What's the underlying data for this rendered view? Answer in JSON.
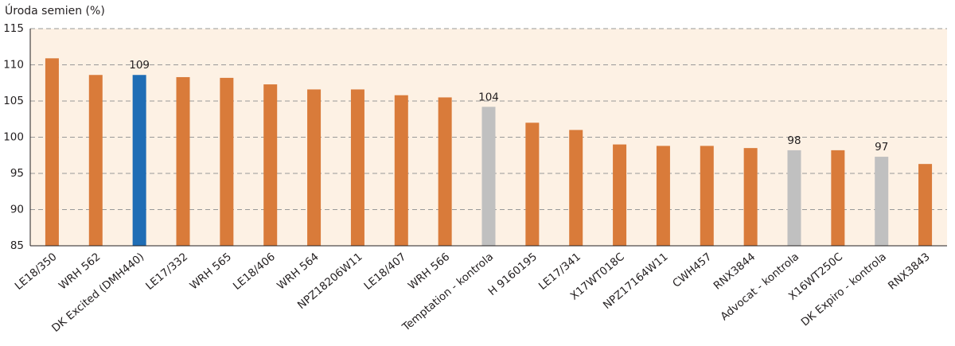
{
  "chart_data": {
    "type": "bar",
    "title": "Úroda semien (%)",
    "categories": [
      "LE18/350",
      "WRH 562",
      "DK Excited (DMH440)",
      "LE17/332",
      "WRH 565",
      "LE18/406",
      "WRH 564",
      "NPZ18206W11",
      "LE18/407",
      "WRH 566",
      "Temptation - kontrola",
      "H 9160195",
      "LE17/341",
      "X17WT018C",
      "NPZ17164W11",
      "CWH457",
      "RNX3844",
      "Advocat - kontrola",
      "X16WT250C",
      "DK Expiro - kontrola",
      "RNX3843"
    ],
    "values": [
      110.9,
      108.6,
      108.6,
      108.3,
      108.2,
      107.3,
      106.6,
      106.6,
      105.8,
      105.5,
      104.2,
      102.0,
      101.0,
      99.0,
      98.8,
      98.8,
      98.5,
      98.2,
      98.2,
      97.3,
      96.3
    ],
    "value_labels": [
      null,
      null,
      "109",
      null,
      null,
      null,
      null,
      null,
      null,
      null,
      "104",
      null,
      null,
      null,
      null,
      null,
      null,
      "98",
      null,
      "97",
      null
    ],
    "colors": [
      "#d97b3a",
      "#d97b3a",
      "#1f6db5",
      "#d97b3a",
      "#d97b3a",
      "#d97b3a",
      "#d97b3a",
      "#d97b3a",
      "#d97b3a",
      "#d97b3a",
      "#c0c0c0",
      "#d97b3a",
      "#d97b3a",
      "#d97b3a",
      "#d97b3a",
      "#d97b3a",
      "#d97b3a",
      "#c0c0c0",
      "#d97b3a",
      "#c0c0c0",
      "#d97b3a"
    ],
    "ylim": [
      85,
      115
    ],
    "yticks": [
      85,
      90,
      95,
      100,
      105,
      110,
      115
    ],
    "grid": true
  }
}
